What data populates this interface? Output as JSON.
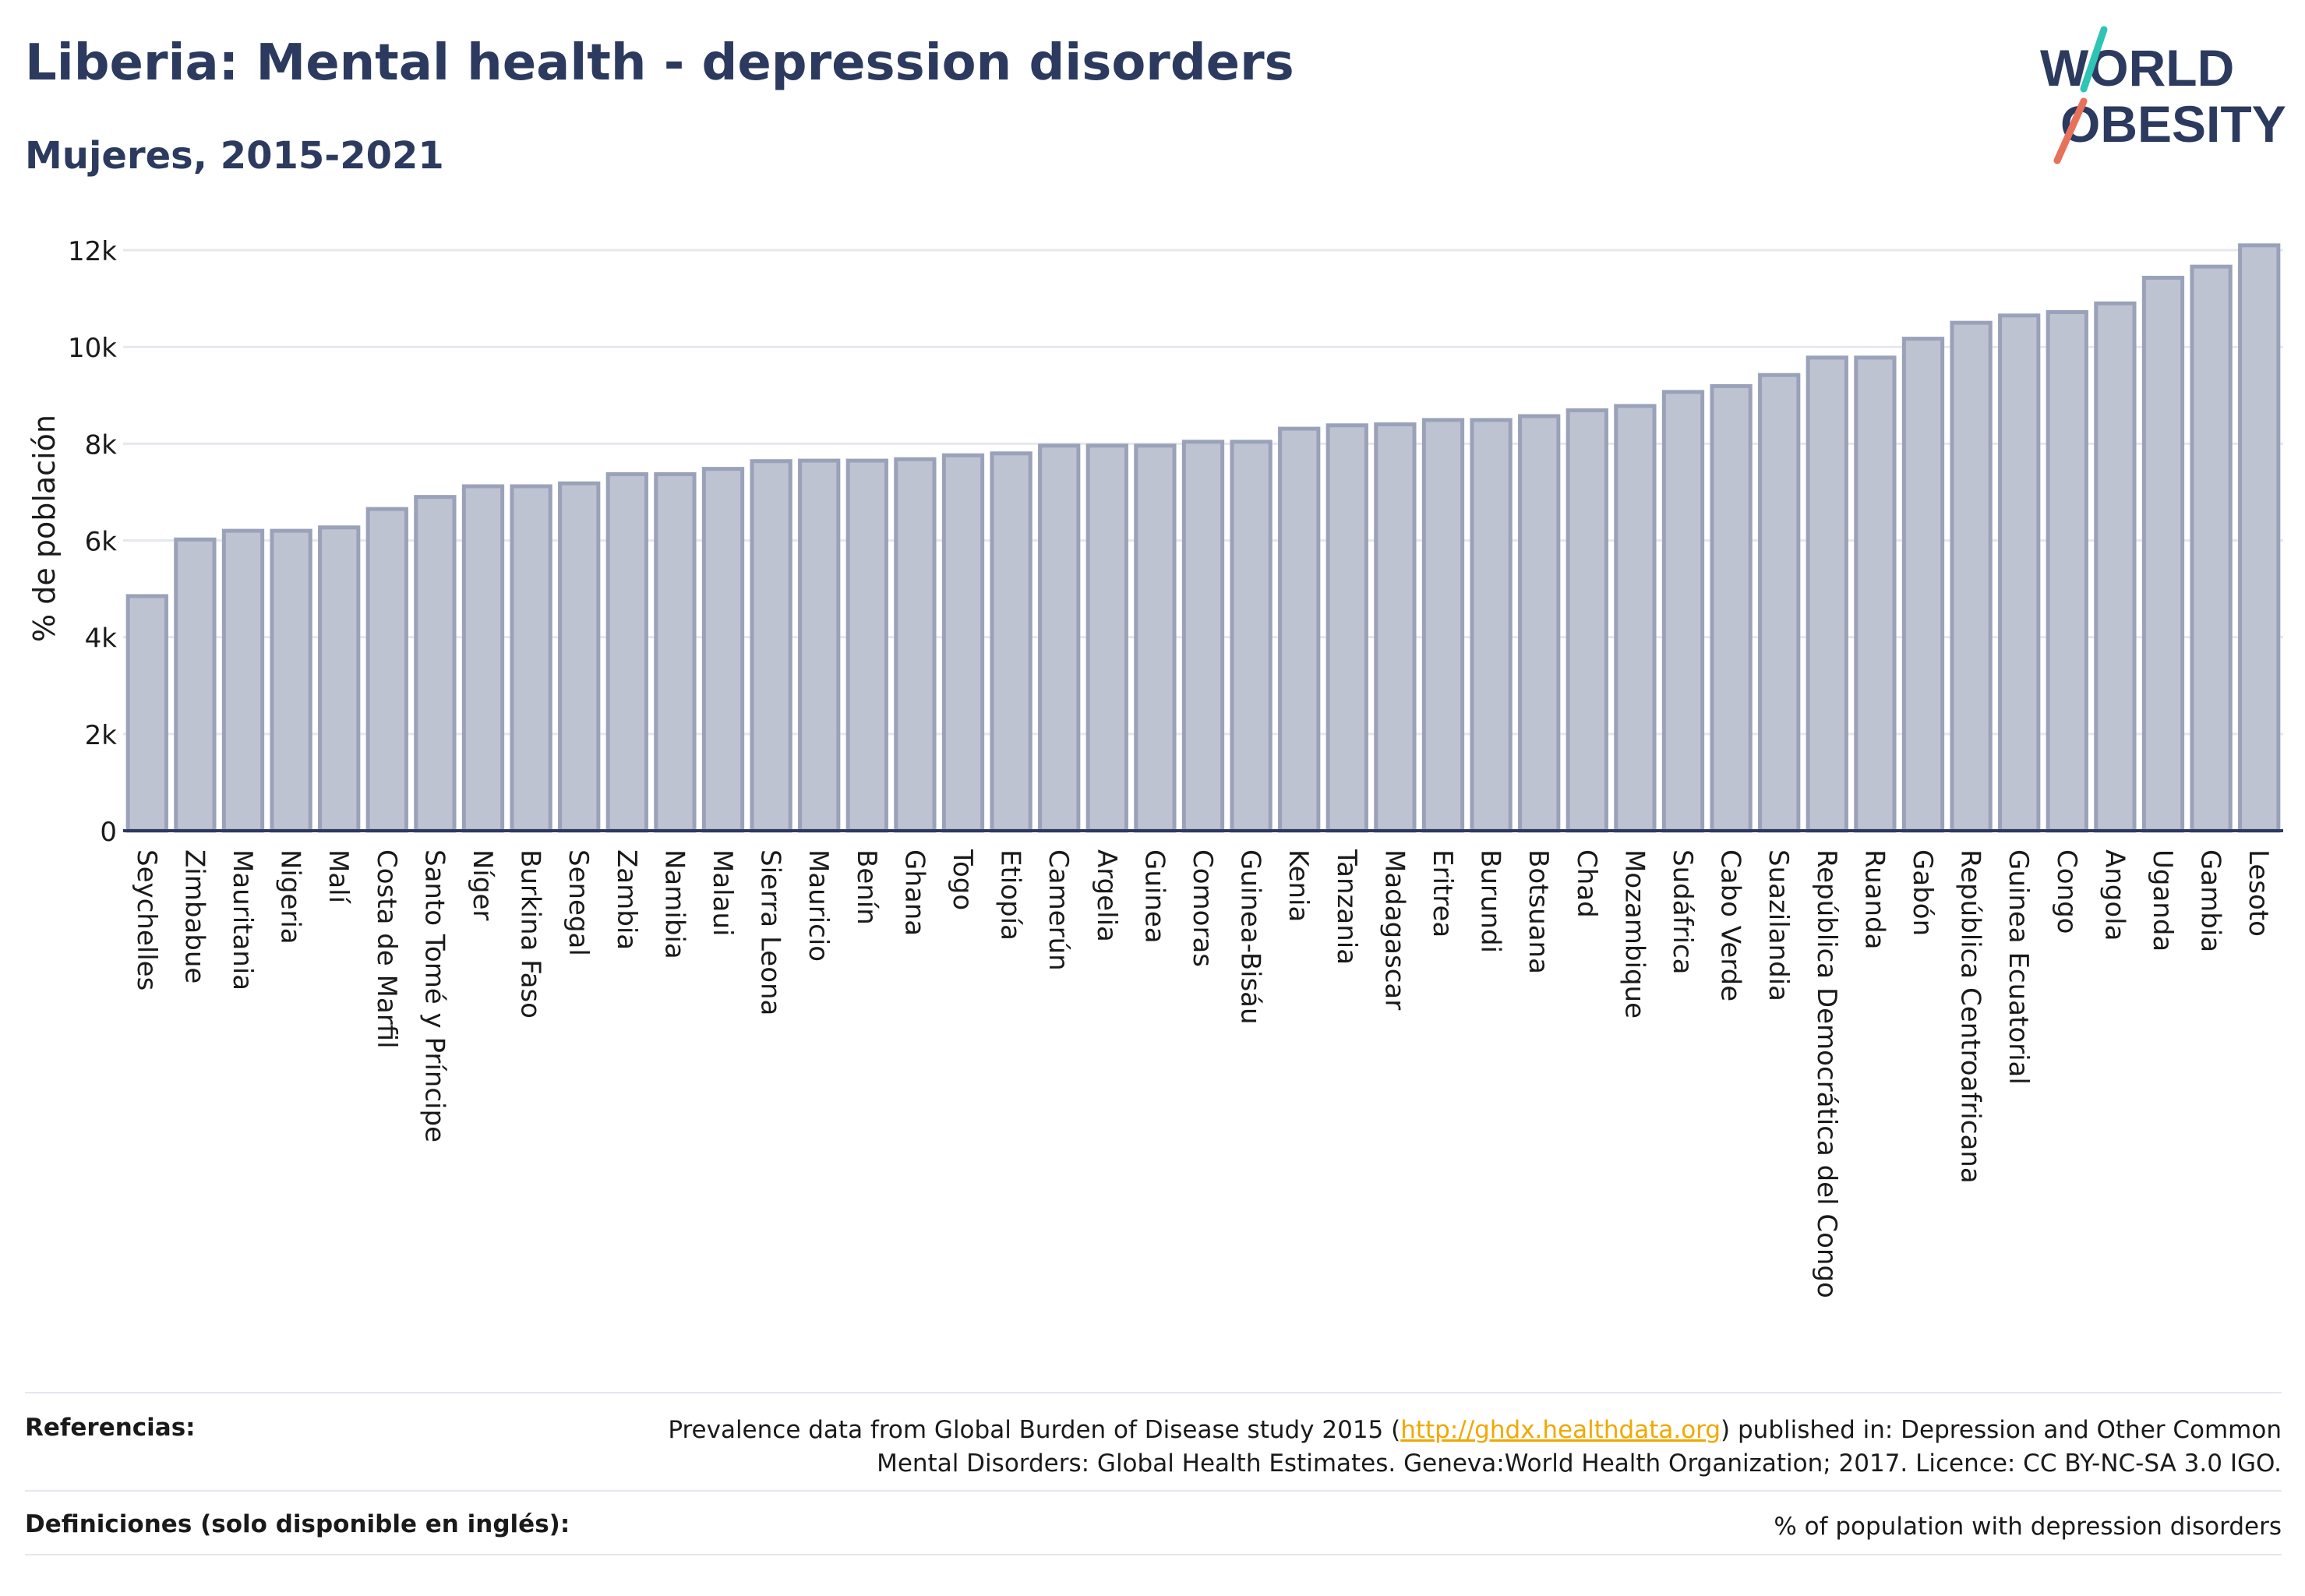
{
  "header": {
    "title": "Liberia: Mental health - depression disorders",
    "subtitle": "Mujeres, 2015-2021"
  },
  "logo": {
    "line1": "WORLD",
    "line2": "OBESITY",
    "colors": {
      "teal": "#2ec4b6",
      "coral": "#e8715a",
      "navy": "#2b3a5e"
    }
  },
  "chart_data": {
    "type": "bar",
    "title": "Liberia: Mental health - depression disorders",
    "subtitle": "Mujeres, 2015-2021",
    "xlabel": "",
    "ylabel": "% de población",
    "ylim": [
      0,
      12500
    ],
    "yticks": [
      0,
      2000,
      4000,
      6000,
      8000,
      10000,
      12000
    ],
    "ytick_labels": [
      "0",
      "2k",
      "4k",
      "6k",
      "8k",
      "10k",
      "12k"
    ],
    "grid": true,
    "legend": "none",
    "bar_fill": "#bec3d2",
    "bar_stroke": "#9aa2ba",
    "categories": [
      "Seychelles",
      "Zimbabue",
      "Mauritania",
      "Nigeria",
      "Malí",
      "Costa de Marfil",
      "Santo Tomé y Príncipe",
      "Níger",
      "Burkina Faso",
      "Senegal",
      "Zambia",
      "Namibia",
      "Malaui",
      "Sierra Leona",
      "Mauricio",
      "Benín",
      "Ghana",
      "Togo",
      "Etiopía",
      "Camerún",
      "Argelia",
      "Guinea",
      "Comoras",
      "Guinea-Bisáu",
      "Kenia",
      "Tanzania",
      "Madagascar",
      "Eritrea",
      "Burundi",
      "Botsuana",
      "Chad",
      "Mozambique",
      "Sudáfrica",
      "Cabo Verde",
      "Suazilandia",
      "República Democrática del Congo",
      "Ruanda",
      "Gabón",
      "República Centroafricana",
      "Guinea Ecuatorial",
      "Congo",
      "Angola",
      "Uganda",
      "Gambia",
      "Lesoto"
    ],
    "values": [
      4850,
      6020,
      6200,
      6200,
      6270,
      6650,
      6900,
      7120,
      7120,
      7180,
      7370,
      7370,
      7480,
      7640,
      7650,
      7650,
      7680,
      7760,
      7800,
      7960,
      7960,
      7960,
      8040,
      8040,
      8310,
      8380,
      8400,
      8490,
      8490,
      8570,
      8690,
      8780,
      9070,
      9190,
      9420,
      9780,
      9780,
      10170,
      10500,
      10650,
      10720,
      10900,
      11430,
      11660,
      12100
    ]
  },
  "footer": {
    "references_label": "Referencias:",
    "references_prefix": "Prevalence data from Global Burden of Disease study 2015 (",
    "references_link": "http://ghdx.healthdata.org",
    "references_suffix": ") published in: Depression and Other Common",
    "references_line2": "Mental Disorders: Global Health Estimates. Geneva:World Health Organization; 2017. Licence: CC BY-NC-SA 3.0 IGO.",
    "definitions_label": "Definiciones (solo disponible en inglés):",
    "definitions_text": "% of population with depression disorders"
  }
}
